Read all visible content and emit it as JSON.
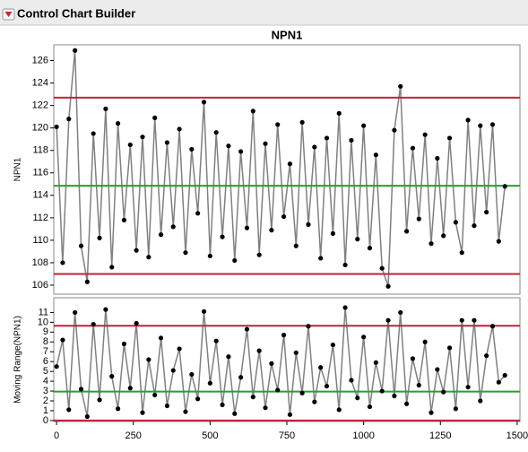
{
  "header": {
    "title": "Control Chart Builder"
  },
  "chart_data": [
    {
      "type": "line",
      "title": "NPN1",
      "y_label": "NPN1",
      "x": [
        0,
        20,
        40,
        60,
        80,
        100,
        120,
        140,
        160,
        180,
        200,
        220,
        240,
        260,
        280,
        300,
        320,
        340,
        360,
        380,
        400,
        420,
        440,
        460,
        480,
        500,
        520,
        540,
        560,
        580,
        600,
        620,
        640,
        660,
        680,
        700,
        720,
        740,
        760,
        780,
        800,
        820,
        840,
        860,
        880,
        900,
        920,
        940,
        960,
        980,
        1000,
        1020,
        1040,
        1060,
        1080,
        1100,
        1120,
        1140,
        1160,
        1180,
        1200,
        1220,
        1240,
        1260,
        1280,
        1300,
        1320,
        1340,
        1360,
        1380,
        1400,
        1420,
        1440,
        1460
      ],
      "values": [
        120.1,
        108,
        120.8,
        126.9,
        109.5,
        106.3,
        119.5,
        110.2,
        121.7,
        107.6,
        120.4,
        111.8,
        118.5,
        109.1,
        119.2,
        108.5,
        120.9,
        110.5,
        118.7,
        111.2,
        119.9,
        108.9,
        118.1,
        112.4,
        122.3,
        108.6,
        119.6,
        110.3,
        118.4,
        108.2,
        117.9,
        111.1,
        121.5,
        108.7,
        118.6,
        110.9,
        120.3,
        112.1,
        116.8,
        109.5,
        120.5,
        111.4,
        118.3,
        108.4,
        119.1,
        110.6,
        121.3,
        107.8,
        118.9,
        110.1,
        120.2,
        109.3,
        117.6,
        107.5,
        105.9,
        119.8,
        123.7,
        110.8,
        118.2,
        111.9,
        119.4,
        109.7,
        117.3,
        110.4,
        119.1,
        111.6,
        108.9,
        120.7,
        111.3,
        120.2,
        112.5,
        120.3,
        109.9,
        114.8
      ],
      "line_color": "#808080",
      "marker_color": "#000000",
      "limits": {
        "ucl": 122.7,
        "center": 114.85,
        "lcl": 107.0
      },
      "limit_colors": {
        "ucl": "#c0223a",
        "center": "#22a22a",
        "lcl": "#c0223a"
      },
      "xlim": [
        -9,
        1509
      ],
      "ylim": [
        105.2,
        127.4
      ],
      "yticks": [
        106,
        108,
        110,
        112,
        114,
        116,
        118,
        120,
        122,
        124,
        126
      ]
    },
    {
      "type": "line",
      "y_label": "Moving Range(NPN1)",
      "x": [
        0,
        20,
        40,
        60,
        80,
        100,
        120,
        140,
        160,
        180,
        200,
        220,
        240,
        260,
        280,
        300,
        320,
        340,
        360,
        380,
        400,
        420,
        440,
        460,
        480,
        500,
        520,
        540,
        560,
        580,
        600,
        620,
        640,
        660,
        680,
        700,
        720,
        740,
        760,
        780,
        800,
        820,
        840,
        860,
        880,
        900,
        920,
        940,
        960,
        980,
        1000,
        1020,
        1040,
        1060,
        1080,
        1100,
        1120,
        1140,
        1160,
        1180,
        1200,
        1220,
        1240,
        1260,
        1280,
        1300,
        1320,
        1340,
        1360,
        1380,
        1400,
        1420,
        1440,
        1460
      ],
      "values": [
        5.5,
        8.2,
        1.1,
        11.0,
        3.2,
        0.4,
        9.8,
        2.1,
        11.3,
        4.5,
        1.2,
        7.8,
        3.3,
        9.9,
        0.8,
        6.2,
        2.6,
        8.4,
        1.5,
        5.1,
        7.3,
        0.9,
        4.7,
        2.2,
        11.1,
        3.8,
        8.1,
        1.6,
        6.5,
        0.7,
        4.4,
        9.3,
        2.4,
        7.1,
        1.3,
        5.8,
        3.1,
        8.7,
        0.6,
        6.9,
        2.8,
        9.6,
        1.9,
        5.4,
        3.5,
        7.7,
        1.1,
        11.5,
        4.1,
        2.3,
        8.5,
        1.4,
        5.9,
        3.0,
        10.2,
        2.5,
        11.0,
        1.7,
        6.3,
        3.6,
        8.0,
        0.8,
        5.2,
        2.9,
        7.4,
        1.2,
        10.2,
        3.4,
        10.2,
        2.0,
        6.6,
        9.6,
        3.9,
        4.6
      ],
      "line_color": "#808080",
      "marker_color": "#000000",
      "limits": {
        "ucl": 9.65,
        "center": 2.95,
        "lcl": 0
      },
      "limit_colors": {
        "ucl": "#c0223a",
        "center": "#22a22a",
        "lcl": "#c0223a"
      },
      "xlim": [
        -9,
        1509
      ],
      "ylim": [
        -0.1,
        12.5
      ],
      "yticks": [
        0,
        1,
        2,
        3,
        4,
        5,
        6,
        7,
        8,
        9,
        10,
        11
      ],
      "xticks": [
        0,
        250,
        500,
        750,
        1000,
        1250,
        1500
      ]
    }
  ]
}
